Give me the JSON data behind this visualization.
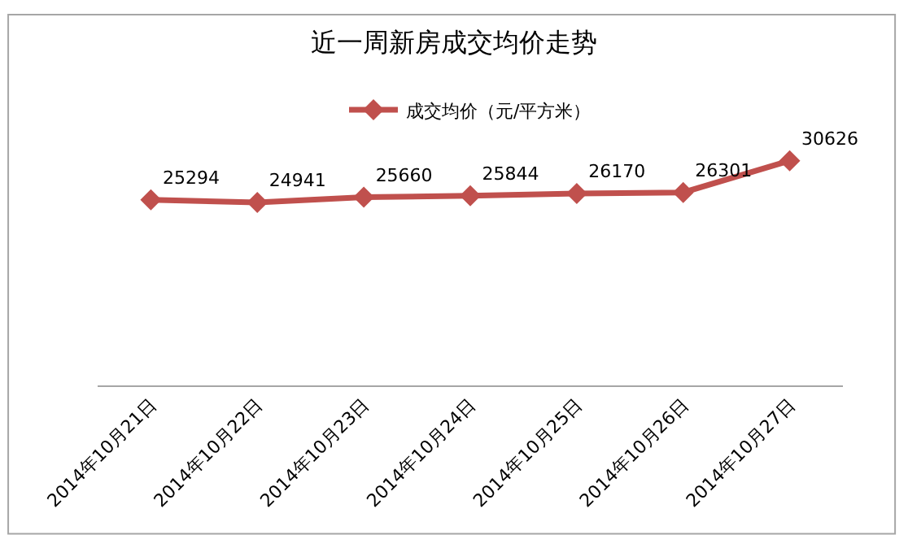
{
  "chart_data": {
    "type": "line",
    "title": "近一周新房成交均价走势",
    "categories": [
      "2014年10月21日",
      "2014年10月22日",
      "2014年10月23日",
      "2014年10月24日",
      "2014年10月25日",
      "2014年10月26日",
      "2014年10月27日"
    ],
    "series": [
      {
        "name": "成交均价（元/平方米）",
        "color": "#c0504d",
        "values": [
          25294,
          24941,
          25660,
          25844,
          26170,
          26301,
          30626
        ]
      }
    ],
    "data_labels": true,
    "legend": "top",
    "marker": "diamond",
    "line_style": "solid",
    "tick_labels": "x"
  }
}
